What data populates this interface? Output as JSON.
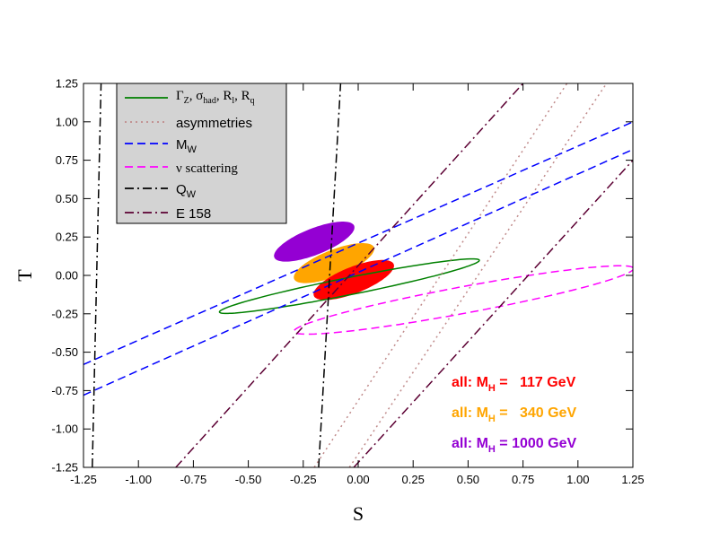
{
  "chart_data": {
    "type": "line",
    "xlabel": "S",
    "ylabel": "T",
    "xlim": [
      -1.25,
      1.25
    ],
    "ylim": [
      -1.25,
      1.25
    ],
    "x_ticks": [
      "-1.25",
      "-1.00",
      "-0.75",
      "-0.50",
      "-0.25",
      "0.00",
      "0.25",
      "0.50",
      "0.75",
      "1.00",
      "1.25"
    ],
    "y_ticks": [
      "-1.25",
      "-1.00",
      "-0.75",
      "-0.50",
      "-0.25",
      "0.00",
      "0.25",
      "0.50",
      "0.75",
      "1.00",
      "1.25"
    ],
    "grid": false,
    "legend_position": "top-left",
    "series": [
      {
        "name": "Γ_Z, σ_had, R_l, R_q",
        "shape": "ellipse",
        "color": "#008000",
        "dash": "solid",
        "center": [
          -0.04,
          -0.07
        ],
        "semi_axes": [
          0.615,
          0.055
        ],
        "angle_deg": 16
      },
      {
        "name": "asymmetries",
        "shape": "band",
        "color": "#c08a8a",
        "dash": "dotted",
        "lines": [
          {
            "x": [
              -0.2,
              0.95
            ],
            "y": [
              -1.25,
              1.25
            ]
          },
          {
            "x": [
              -0.04,
              1.13
            ],
            "y": [
              -1.25,
              1.25
            ]
          }
        ]
      },
      {
        "name": "M_W",
        "shape": "band",
        "color": "#0000ff",
        "dash": "dashed",
        "lines": [
          {
            "x": [
              -1.25,
              1.25
            ],
            "y": [
              -0.58,
              1.0
            ]
          },
          {
            "x": [
              -1.25,
              1.25
            ],
            "y": [
              -0.78,
              0.82
            ]
          }
        ]
      },
      {
        "name": "ν scattering",
        "shape": "ellipse",
        "color": "#ff00ff",
        "dash": "dashed",
        "center": [
          0.48,
          -0.16
        ],
        "semi_axes": [
          0.8,
          0.085
        ],
        "angle_deg": 15
      },
      {
        "name": "Q_W",
        "shape": "band",
        "color": "#000000",
        "dash": "dashdot",
        "lines": [
          {
            "x": [
              -1.21,
              -1.17
            ],
            "y": [
              -1.25,
              1.25
            ]
          },
          {
            "x": [
              -0.18,
              -0.08
            ],
            "y": [
              -1.25,
              1.25
            ]
          }
        ]
      },
      {
        "name": "E 158",
        "shape": "band",
        "color": "#5c0033",
        "dash": "dashdot",
        "lines": [
          {
            "x": [
              -0.83,
              0.75
            ],
            "y": [
              -1.25,
              1.25
            ]
          },
          {
            "x": [
              -0.02,
              1.25
            ],
            "y": [
              -1.25,
              0.75
            ]
          }
        ]
      }
    ],
    "filled_regions": [
      {
        "label": "all: M_H = 1000 GeV",
        "color": "#9400d3",
        "center": [
          -0.2,
          0.22
        ],
        "semi_axes": [
          0.21,
          0.08
        ],
        "angle_deg": 32
      },
      {
        "label": "all: M_H = 340 GeV",
        "color": "#ffa500",
        "center": [
          -0.11,
          0.08
        ],
        "semi_axes": [
          0.21,
          0.08
        ],
        "angle_deg": 32
      },
      {
        "label": "all: M_H = 117 GeV",
        "color": "#ff0000",
        "center": [
          -0.02,
          -0.03
        ],
        "semi_axes": [
          0.21,
          0.08
        ],
        "angle_deg": 32
      }
    ],
    "annotations": [
      {
        "prefix": "all: M",
        "sub": "H",
        "value": " =   117 GeV",
        "color": "#ff0000"
      },
      {
        "prefix": "all: M",
        "sub": "H",
        "value": " =   340 GeV",
        "color": "#ffa500"
      },
      {
        "prefix": "all: M",
        "sub": "H",
        "value": " = 1000 GeV",
        "color": "#9400d3"
      }
    ]
  }
}
